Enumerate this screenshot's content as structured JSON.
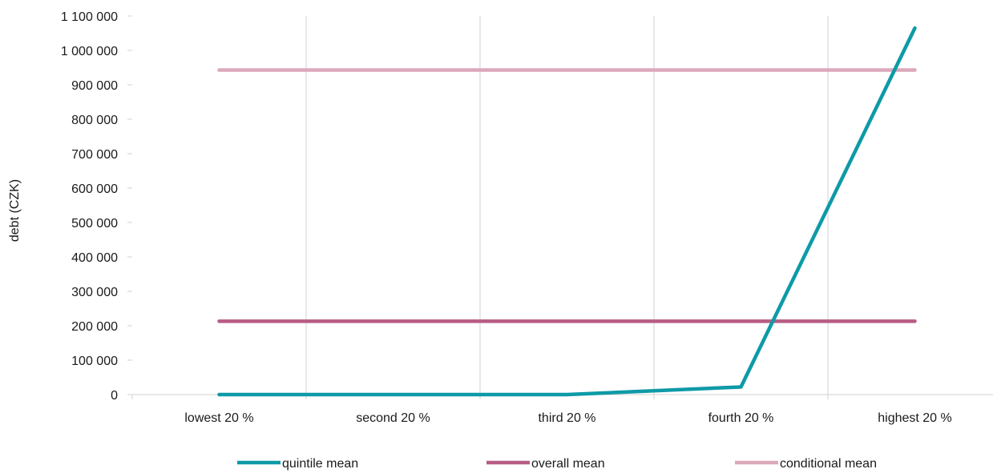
{
  "chart_data": {
    "type": "line",
    "title": "",
    "xlabel": "",
    "ylabel": "debt (CZK)",
    "categories": [
      "lowest 20 %",
      "second 20 %",
      "third 20 %",
      "fourth 20 %",
      "highest 20 %"
    ],
    "y_tick_labels": [
      "0",
      "100 000",
      "200 000",
      "300 000",
      "400 000",
      "500 000",
      "600 000",
      "700 000",
      "800 000",
      "900 000",
      "1 000 000",
      "1 100 000"
    ],
    "ylim": [
      0,
      1100000
    ],
    "y_step": 100000,
    "grid": "vertical",
    "legend_position": "bottom",
    "series": [
      {
        "name": "quintile mean",
        "color": "#0e9aa7",
        "values": [
          0,
          0,
          0,
          22000,
          1065000
        ]
      },
      {
        "name": "overall mean",
        "color": "#b85c82",
        "values": [
          213000,
          213000,
          213000,
          213000,
          213000
        ]
      },
      {
        "name": "conditional mean",
        "color": "#dba8bc",
        "values": [
          943000,
          943000,
          943000,
          943000,
          943000
        ]
      }
    ]
  }
}
